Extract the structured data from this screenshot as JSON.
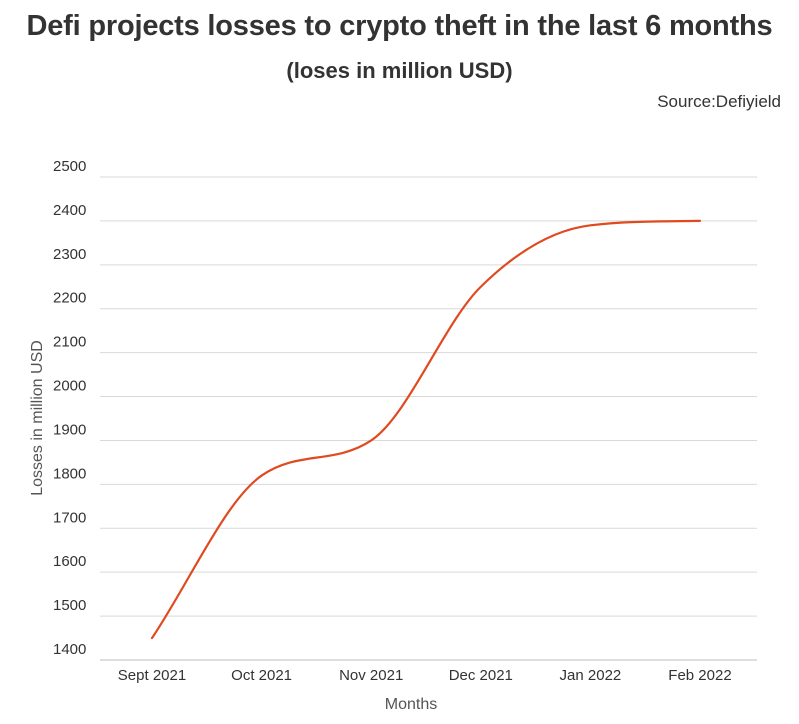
{
  "header": {
    "title": "Defi projects losses to crypto theft in the last 6 months",
    "subtitle": "(loses in million USD)",
    "source": "Source:Defiyield"
  },
  "chart_data": {
    "type": "line",
    "title": "Defi projects losses to crypto theft in the last 6 months",
    "subtitle": "(loses in million USD)",
    "xlabel": "Months",
    "ylabel": "Losses in million USD",
    "categories": [
      "Sept 2021",
      "Oct 2021",
      "Nov 2021",
      "Dec 2021",
      "Jan 2022",
      "Feb 2022"
    ],
    "series": [
      {
        "values": [
          1450,
          1820,
          1900,
          2250,
          2390,
          2400
        ],
        "color": "#e04a1f"
      }
    ],
    "ylim": [
      1400,
      2500
    ],
    "yticks": [
      1400,
      1500,
      1600,
      1700,
      1800,
      1900,
      2000,
      2100,
      2200,
      2300,
      2400,
      2500
    ],
    "grid": true,
    "gridColor": "#d9d9d9",
    "smooth": true
  }
}
